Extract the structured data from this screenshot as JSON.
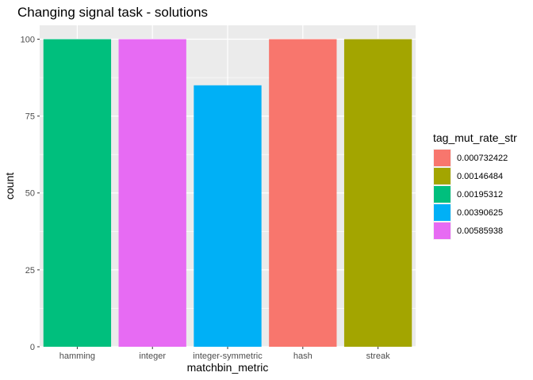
{
  "chart_data": {
    "type": "bar",
    "title": "Changing signal task - solutions",
    "xlabel": "matchbin_metric",
    "ylabel": "count",
    "ylim": [
      0,
      104.5
    ],
    "yticks": [
      0,
      25,
      50,
      75,
      100
    ],
    "grid": true,
    "legend_position": "right",
    "categories": [
      "hamming",
      "integer",
      "integer-symmetric",
      "hash",
      "streak"
    ],
    "values": [
      100,
      100,
      85,
      100,
      100
    ],
    "bar_series": [
      "0.00195312",
      "0.00585938",
      "0.00390625",
      "0.000732422",
      "0.00146484"
    ],
    "legend": {
      "title": "tag_mut_rate_str",
      "entries": [
        {
          "label": "0.000732422",
          "color": "#F8766D"
        },
        {
          "label": "0.00146484",
          "color": "#A3A500"
        },
        {
          "label": "0.00195312",
          "color": "#00BF7D"
        },
        {
          "label": "0.00390625",
          "color": "#00B0F6"
        },
        {
          "label": "0.00585938",
          "color": "#E76BF3"
        }
      ]
    }
  }
}
